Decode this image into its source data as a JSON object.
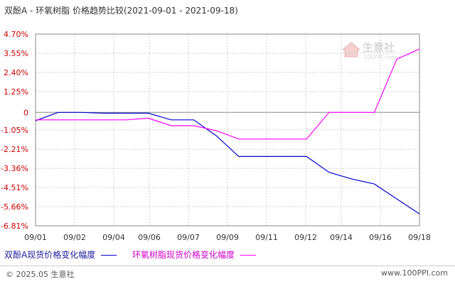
{
  "title": "双酚A - 环氧树脂 价格趋势比较(2021-09-01 - 2021-09-18)",
  "watermark": {
    "brand": "生意社",
    "url": "100PPI.com"
  },
  "footer": {
    "left": "© 2025.05 生意社",
    "right": "www.100PPI.com"
  },
  "colors": {
    "series1": "#0000cc",
    "series2": "#ff00ff",
    "grid": "#cccccc",
    "axis": "#888888"
  },
  "chart_data": {
    "type": "line",
    "title": "双酚A - 环氧树脂 价格趋势比较(2021-09-01 - 2021-09-18)",
    "xlabel": "",
    "ylabel": "",
    "x_ticks": [
      "09/01",
      "09/02",
      "09/04",
      "09/06",
      "09/07",
      "09/09",
      "09/11",
      "09/12",
      "09/14",
      "09/16",
      "09/18"
    ],
    "y_ticks": [
      "4.70%",
      "3.55%",
      "2.40%",
      "1.25%",
      "0",
      "-1.05%",
      "-2.21%",
      "-3.36%",
      "-4.51%",
      "-5.66%",
      "-6.81%"
    ],
    "ylim": [
      -6.81,
      4.7
    ],
    "grid": true,
    "legend_position": "bottom",
    "series": [
      {
        "name": "双酚A现货价格变化幅度",
        "color": "#0000cc",
        "x": [
          "09/01",
          "09/02",
          "09/03",
          "09/04",
          "09/05",
          "09/06",
          "09/07",
          "09/08",
          "09/09",
          "09/10",
          "09/11",
          "09/12",
          "09/13",
          "09/14",
          "09/15",
          "09/16",
          "09/17",
          "09/18"
        ],
        "values": [
          -0.5,
          0.0,
          0.0,
          -0.05,
          -0.05,
          -0.05,
          -0.45,
          -0.45,
          -1.4,
          -2.65,
          -2.65,
          -2.65,
          -2.65,
          -3.6,
          -4.0,
          -4.3,
          -5.2,
          -6.1
        ]
      },
      {
        "name": "环氧树脂现货价格变化幅度",
        "color": "#ff00ff",
        "x": [
          "09/01",
          "09/02",
          "09/03",
          "09/04",
          "09/05",
          "09/06",
          "09/07",
          "09/08",
          "09/09",
          "09/10",
          "09/11",
          "09/12",
          "09/13",
          "09/14",
          "09/15",
          "09/16",
          "09/17",
          "09/18"
        ],
        "values": [
          -0.45,
          -0.45,
          -0.45,
          -0.45,
          -0.45,
          -0.35,
          -0.8,
          -0.8,
          -1.1,
          -1.6,
          -1.6,
          -1.6,
          -1.6,
          0.0,
          0.0,
          0.0,
          3.2,
          3.8
        ]
      }
    ]
  }
}
